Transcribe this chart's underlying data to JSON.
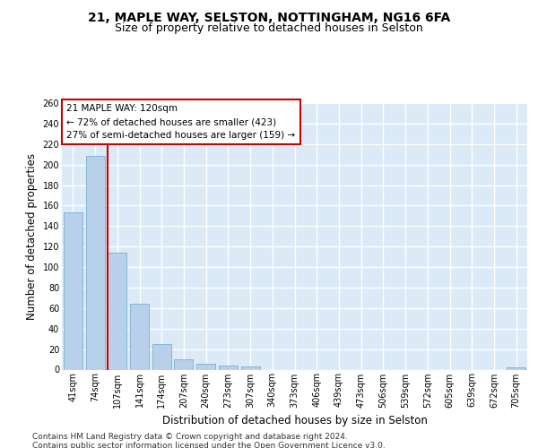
{
  "title1": "21, MAPLE WAY, SELSTON, NOTTINGHAM, NG16 6FA",
  "title2": "Size of property relative to detached houses in Selston",
  "xlabel": "Distribution of detached houses by size in Selston",
  "ylabel": "Number of detached properties",
  "categories": [
    "41sqm",
    "74sqm",
    "107sqm",
    "141sqm",
    "174sqm",
    "207sqm",
    "240sqm",
    "273sqm",
    "307sqm",
    "340sqm",
    "373sqm",
    "406sqm",
    "439sqm",
    "473sqm",
    "506sqm",
    "539sqm",
    "572sqm",
    "605sqm",
    "639sqm",
    "672sqm",
    "705sqm"
  ],
  "values": [
    153,
    208,
    114,
    64,
    25,
    10,
    6,
    4,
    3,
    0,
    0,
    0,
    0,
    0,
    0,
    0,
    0,
    0,
    0,
    0,
    2
  ],
  "bar_color": "#b8d0ea",
  "bar_edge_color": "#7aafd4",
  "vline_color": "#cc0000",
  "annotation_text": "21 MAPLE WAY: 120sqm\n← 72% of detached houses are smaller (423)\n27% of semi-detached houses are larger (159) →",
  "annotation_box_color": "#ffffff",
  "annotation_box_edge": "#cc0000",
  "footer": "Contains HM Land Registry data © Crown copyright and database right 2024.\nContains public sector information licensed under the Open Government Licence v3.0.",
  "ylim": [
    0,
    260
  ],
  "yticks": [
    0,
    20,
    40,
    60,
    80,
    100,
    120,
    140,
    160,
    180,
    200,
    220,
    240,
    260
  ],
  "bg_color": "#dce9f7",
  "grid_color": "#ffffff",
  "title_fontsize": 10,
  "subtitle_fontsize": 9,
  "tick_fontsize": 7,
  "label_fontsize": 8.5,
  "footer_fontsize": 6.5
}
